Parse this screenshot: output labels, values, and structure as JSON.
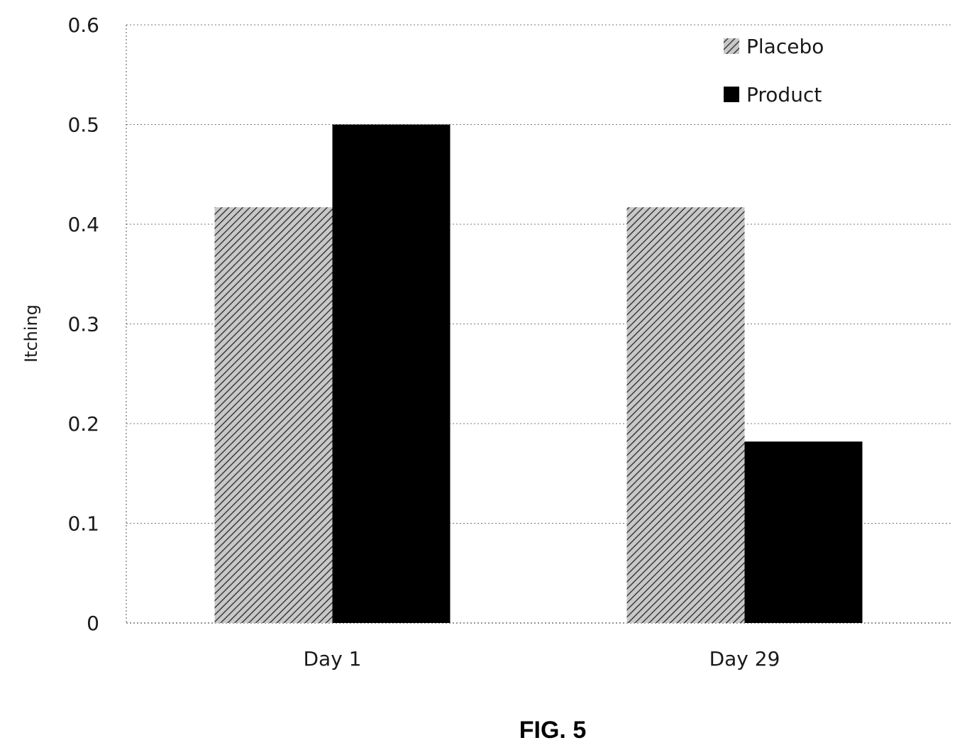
{
  "chart_data": {
    "type": "bar",
    "categories": [
      "Day 1",
      "Day 29"
    ],
    "series": [
      {
        "name": "Placebo",
        "values": [
          0.417,
          0.417
        ],
        "color": "#9a9a9a",
        "pattern": "hatched"
      },
      {
        "name": "Product",
        "values": [
          0.5,
          0.182
        ],
        "color": "#000000",
        "pattern": "solid"
      }
    ],
    "ylabel": "Itching",
    "xlabel": "",
    "ylim": [
      0,
      0.6
    ],
    "yticks": [
      "0",
      "0.1",
      "0.2",
      "0.3",
      "0.4",
      "0.5",
      "0.6"
    ],
    "grid": true,
    "legend_position": "top-right"
  },
  "figure": {
    "caption": "FIG. 5"
  }
}
